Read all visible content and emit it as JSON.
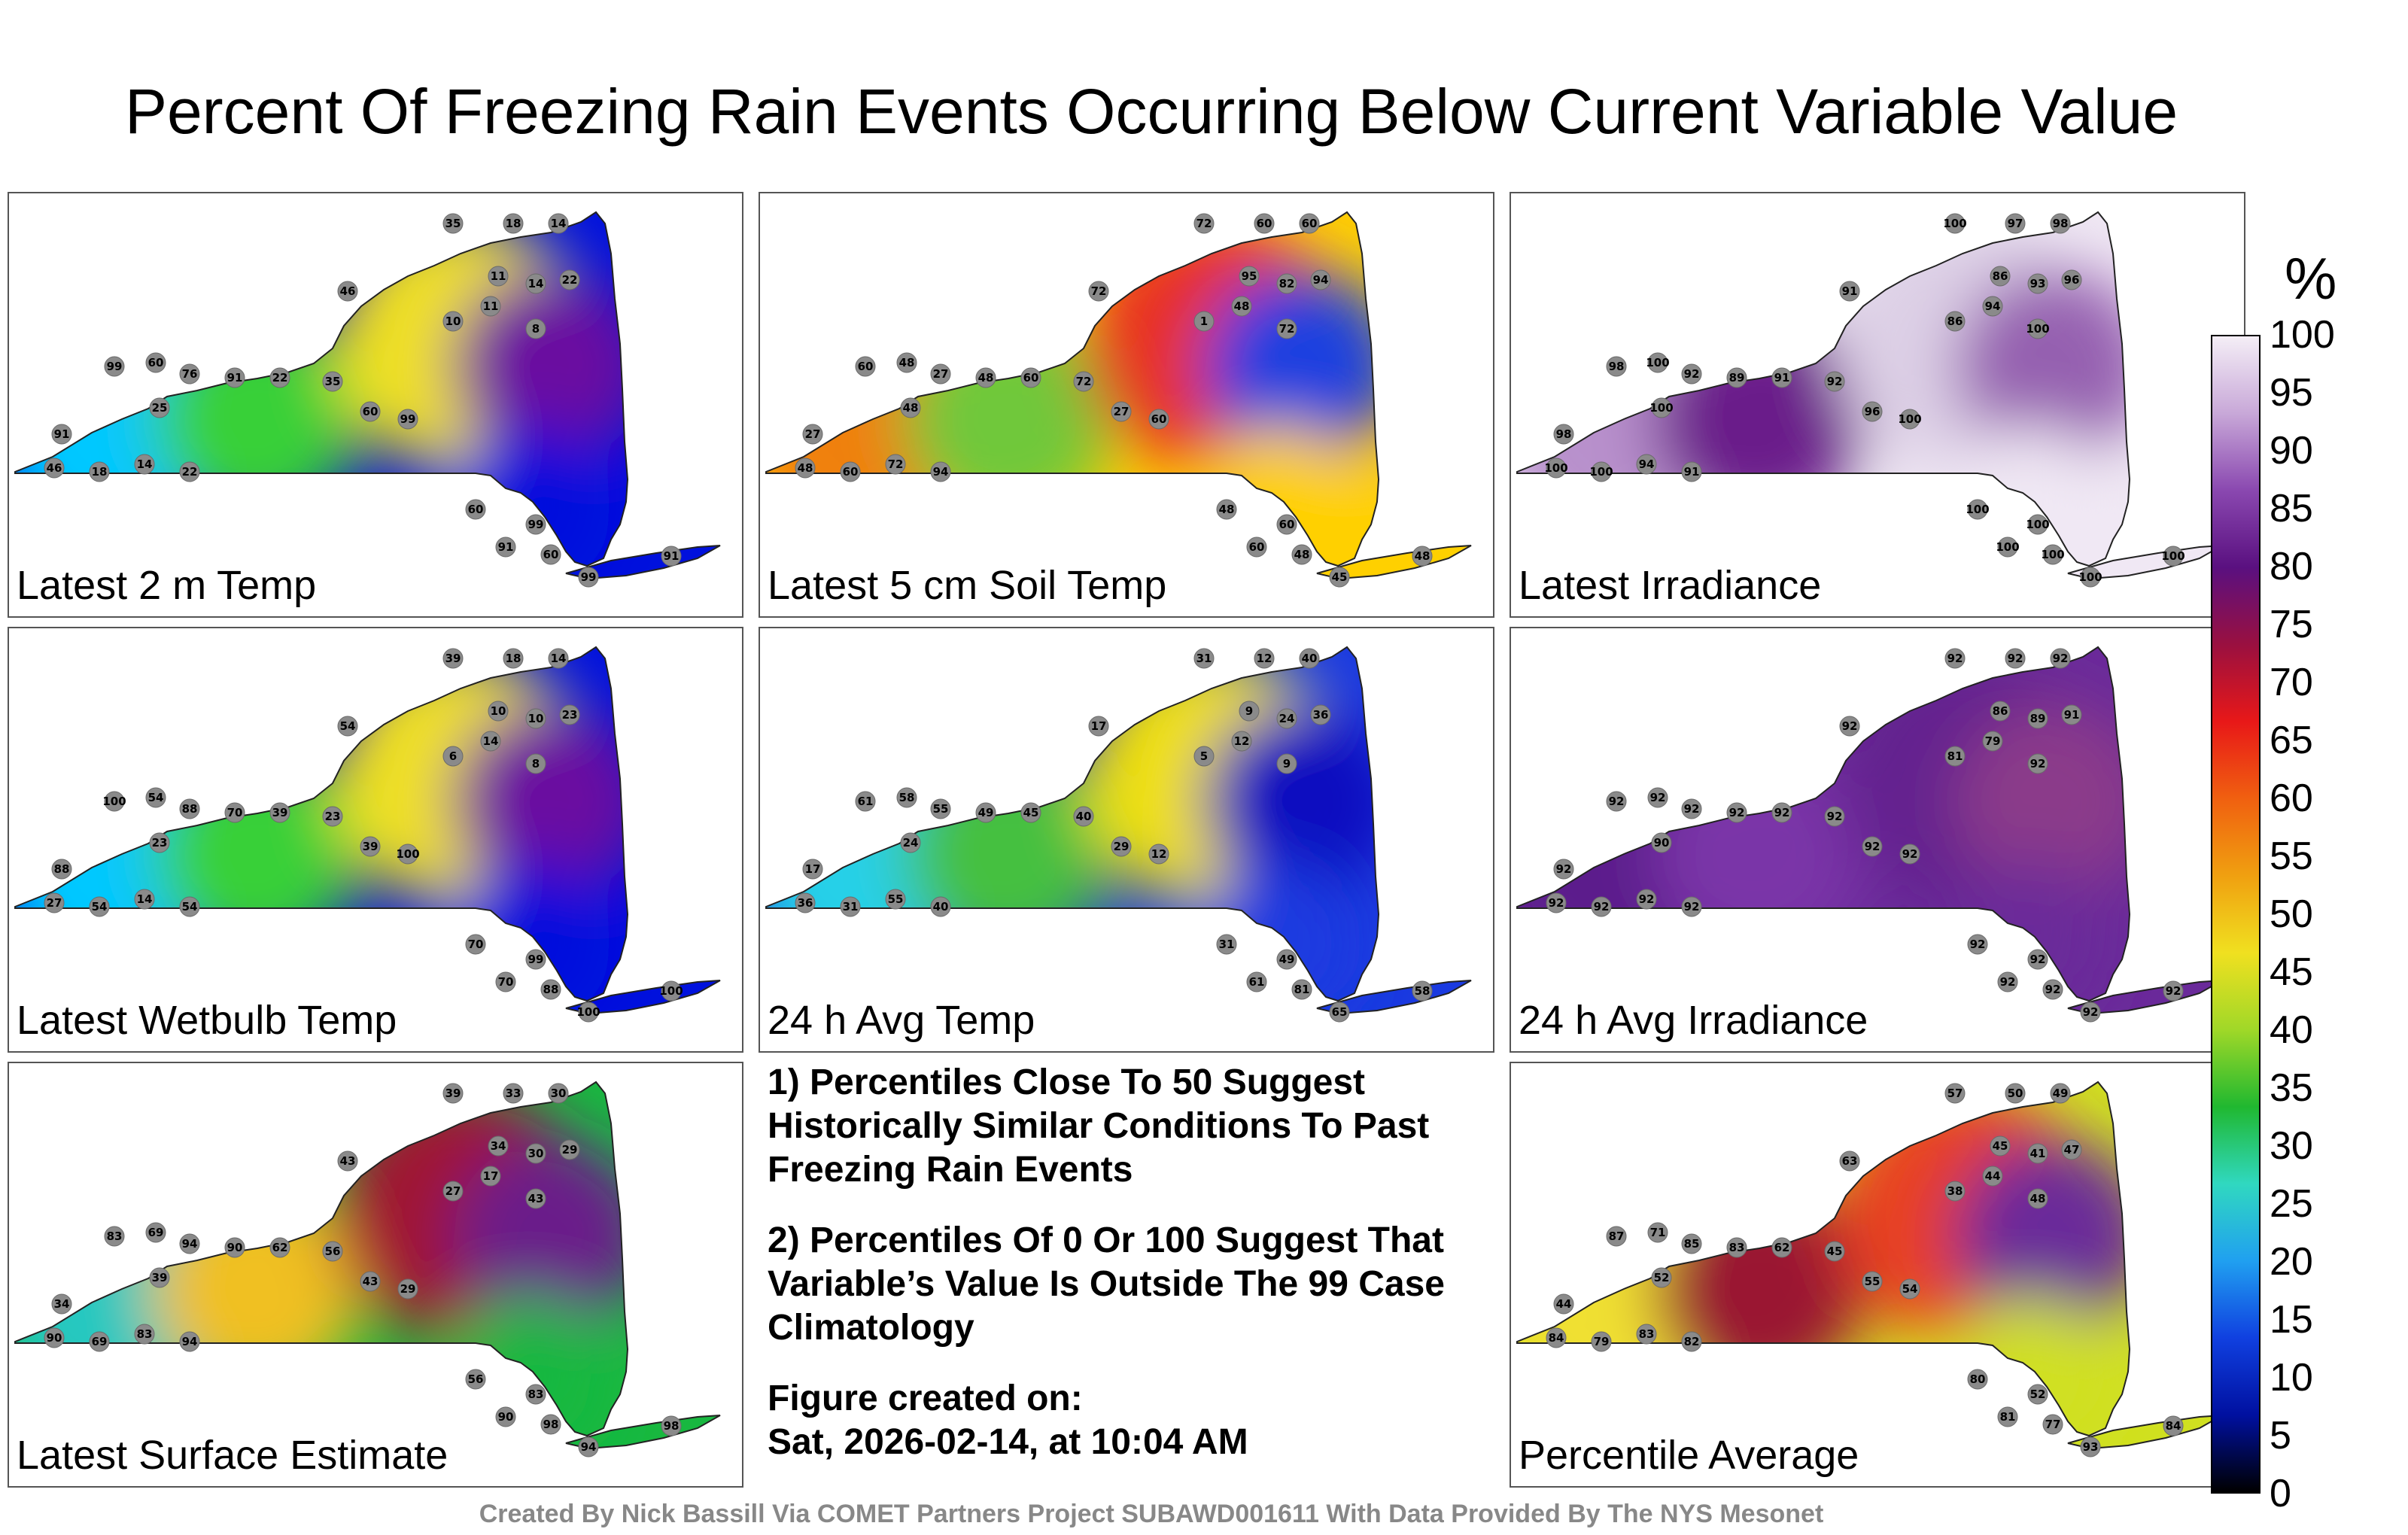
{
  "title": "Percent Of Freezing Rain Events Occurring Below Current Variable Value",
  "panels": [
    {
      "id": "t2m",
      "label": "Latest 2 m Temp",
      "colors": [
        "#0011dd",
        "#00c8ff",
        "#38d038",
        "#f0e020",
        "#6a0fa0"
      ],
      "stations": [
        "35",
        "18",
        "14",
        "46",
        "11",
        "14",
        "22",
        "11",
        "10",
        "8",
        "99",
        "60",
        "76",
        "91",
        "22",
        "35",
        "60",
        "99",
        "25",
        "91",
        "46",
        "18",
        "14",
        "22",
        "60",
        "99",
        "91",
        "60",
        "99",
        "91"
      ]
    },
    {
      "id": "soil5",
      "label": "Latest 5 cm Soil Temp",
      "colors": [
        "#ffd000",
        "#f08010",
        "#70c83a",
        "#e83020",
        "#1a40e0"
      ],
      "stations": [
        "72",
        "60",
        "60",
        "72",
        "95",
        "82",
        "94",
        "48",
        "1",
        "72",
        "60",
        "48",
        "27",
        "48",
        "60",
        "72",
        "27",
        "60",
        "48",
        "27",
        "48",
        "60",
        "72",
        "94",
        "48",
        "60",
        "60",
        "48",
        "45",
        "48"
      ]
    },
    {
      "id": "irr",
      "label": "Latest Irradiance",
      "colors": [
        "#f0e8f4",
        "#b890cc",
        "#6a1f8a",
        "#ddd0e6",
        "#9560b0"
      ],
      "stations": [
        "100",
        "97",
        "98",
        "91",
        "86",
        "93",
        "96",
        "94",
        "86",
        "100",
        "98",
        "100",
        "92",
        "89",
        "91",
        "92",
        "96",
        "100",
        "100",
        "98",
        "100",
        "100",
        "94",
        "91",
        "100",
        "100",
        "100",
        "100",
        "100",
        "100"
      ]
    },
    {
      "id": "wb",
      "label": "Latest Wetbulb Temp",
      "colors": [
        "#0011dd",
        "#00c8ff",
        "#38d038",
        "#f0e020",
        "#6a0fa0"
      ],
      "stations": [
        "39",
        "18",
        "14",
        "54",
        "10",
        "10",
        "23",
        "14",
        "6",
        "8",
        "100",
        "54",
        "88",
        "70",
        "39",
        "23",
        "39",
        "100",
        "23",
        "88",
        "27",
        "54",
        "14",
        "54",
        "70",
        "99",
        "70",
        "88",
        "100",
        "100"
      ]
    },
    {
      "id": "avgt",
      "label": "24 h Avg Temp",
      "colors": [
        "#1a3ae0",
        "#28d0e8",
        "#44c040",
        "#f0e010",
        "#0a10c0"
      ],
      "stations": [
        "31",
        "12",
        "40",
        "17",
        "9",
        "24",
        "36",
        "12",
        "5",
        "9",
        "61",
        "58",
        "55",
        "49",
        "45",
        "40",
        "29",
        "12",
        "24",
        "17",
        "36",
        "31",
        "55",
        "40",
        "31",
        "49",
        "61",
        "81",
        "65",
        "58"
      ]
    },
    {
      "id": "avgirr",
      "label": "24 h Avg Irradiance",
      "colors": [
        "#6a2a9a",
        "#5c1e8c",
        "#7a36a8",
        "#64248f",
        "#8b3a8a"
      ],
      "stations": [
        "92",
        "92",
        "92",
        "92",
        "86",
        "89",
        "91",
        "79",
        "81",
        "92",
        "92",
        "92",
        "92",
        "92",
        "92",
        "92",
        "92",
        "92",
        "90",
        "92",
        "92",
        "92",
        "92",
        "92",
        "92",
        "92",
        "92",
        "92",
        "92",
        "92"
      ]
    },
    {
      "id": "sfc",
      "label": "Latest Surface Estimate",
      "colors": [
        "#18b840",
        "#28c8c0",
        "#f0c020",
        "#a01830",
        "#6a1f8a"
      ],
      "stations": [
        "39",
        "33",
        "30",
        "43",
        "34",
        "30",
        "29",
        "17",
        "27",
        "43",
        "83",
        "69",
        "94",
        "90",
        "62",
        "56",
        "43",
        "29",
        "39",
        "34",
        "90",
        "69",
        "83",
        "94",
        "56",
        "83",
        "90",
        "98",
        "94",
        "98"
      ]
    },
    {
      "id": "avg",
      "label": "Percentile Average",
      "colors": [
        "#d0e020",
        "#f0e030",
        "#9a1630",
        "#e84020",
        "#6a2a9a"
      ],
      "stations": [
        "57",
        "50",
        "49",
        "63",
        "45",
        "41",
        "47",
        "44",
        "38",
        "48",
        "87",
        "71",
        "85",
        "83",
        "62",
        "45",
        "55",
        "54",
        "52",
        "44",
        "84",
        "79",
        "83",
        "82",
        "80",
        "52",
        "81",
        "77",
        "93",
        "84"
      ]
    }
  ],
  "notes": [
    "1) Percentiles Close To 50 Suggest Historically Similar Conditions To Past Freezing Rain Events",
    "2) Percentiles Of 0 Or 100 Suggest That Variable’s Value Is Outside The 99 Case Climatology",
    "Figure created on:",
    "Sat, 2026-02-14, at 10:04 AM"
  ],
  "colorbar": {
    "unit": "%",
    "ticks": [
      "100",
      "95",
      "90",
      "85",
      "80",
      "75",
      "70",
      "65",
      "60",
      "55",
      "50",
      "45",
      "40",
      "35",
      "30",
      "25",
      "20",
      "15",
      "10",
      "5",
      "0"
    ],
    "colors": [
      "#f4eef6",
      "#c8a8d8",
      "#8a48b0",
      "#5a1080",
      "#9a1040",
      "#e81818",
      "#f06010",
      "#f0a010",
      "#f0e020",
      "#a0d828",
      "#20b830",
      "#30d8c0",
      "#20a0f0",
      "#1040e0",
      "#0010a0",
      "#000000"
    ]
  },
  "credit": "Created By Nick Bassill Via COMET Partners Project SUBAWD001611 With Data Provided By The NYS Mesonet"
}
